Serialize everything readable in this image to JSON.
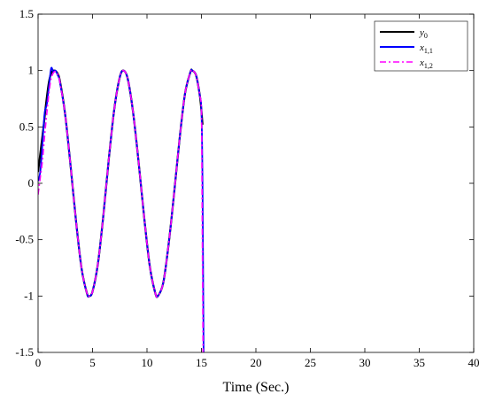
{
  "chart_data": {
    "type": "line",
    "title": "",
    "xlabel": "Time (Sec.)",
    "ylabel": "",
    "xlim": [
      0,
      40
    ],
    "ylim": [
      -1.5,
      1.5
    ],
    "x_ticks": [
      0,
      5,
      10,
      15,
      20,
      25,
      30,
      35,
      40
    ],
    "x_tick_labels": [
      "0",
      "5",
      "10",
      "15",
      "20",
      "25",
      "30",
      "35",
      "40"
    ],
    "y_ticks": [
      1.5,
      1,
      0.5,
      0,
      -0.5,
      -1,
      -1.5
    ],
    "y_tick_labels": [
      "1.5",
      "1",
      "0.5",
      "0",
      "-0.5",
      "-1",
      "-1.5"
    ],
    "grid": false,
    "legend_position": "top-right",
    "series": [
      {
        "name": "y0",
        "name_main": "y",
        "name_sub": "0",
        "color": "#000000",
        "dash": "solid",
        "x": [
          0,
          0.25,
          0.5,
          0.75,
          1.0,
          1.25,
          1.5,
          1.75,
          2.0,
          2.5,
          3.0,
          3.5,
          4.0,
          4.5,
          4.7,
          5.0,
          5.5,
          6.0,
          6.5,
          7.0,
          7.5,
          7.85,
          8.25,
          8.75,
          9.25,
          9.75,
          10.25,
          10.75,
          11.0,
          11.5,
          12.0,
          12.5,
          13.0,
          13.5,
          14.0,
          14.15,
          14.5,
          14.85,
          15.0,
          15.1
        ],
        "y": [
          0.1,
          0.3,
          0.5,
          0.72,
          0.9,
          0.985,
          1.0,
          0.98,
          0.91,
          0.6,
          0.14,
          -0.35,
          -0.76,
          -0.98,
          -1.0,
          -0.96,
          -0.71,
          -0.28,
          0.22,
          0.66,
          0.94,
          1.0,
          0.92,
          0.61,
          0.17,
          -0.31,
          -0.73,
          -0.97,
          -1.0,
          -0.88,
          -0.53,
          -0.08,
          0.4,
          0.8,
          0.99,
          1.0,
          0.96,
          0.78,
          0.64,
          0.52
        ]
      },
      {
        "name": "x1,1",
        "name_main": "x",
        "name_sub": "1,1",
        "color": "#0000ff",
        "dash": "solid",
        "x": [
          0,
          0.2,
          0.4,
          0.6,
          0.8,
          1.0,
          1.2,
          1.4,
          1.6,
          1.8,
          2.0,
          2.5,
          3.0,
          3.5,
          4.0,
          4.5,
          4.7,
          5.0,
          5.5,
          6.0,
          6.5,
          7.0,
          7.5,
          7.85,
          8.25,
          8.75,
          9.25,
          9.75,
          10.25,
          10.75,
          11.0,
          11.5,
          12.0,
          12.5,
          13.0,
          13.5,
          14.0,
          14.15,
          14.5,
          14.85,
          15.0,
          15.1,
          15.2
        ],
        "y": [
          0.02,
          0.1,
          0.35,
          0.62,
          0.7,
          0.86,
          1.02,
          0.99,
          1.0,
          0.96,
          0.9,
          0.6,
          0.14,
          -0.35,
          -0.76,
          -0.98,
          -1.0,
          -0.96,
          -0.71,
          -0.28,
          0.22,
          0.66,
          0.94,
          1.0,
          0.92,
          0.61,
          0.17,
          -0.31,
          -0.73,
          -0.97,
          -1.0,
          -0.88,
          -0.53,
          -0.08,
          0.4,
          0.8,
          0.99,
          1.0,
          0.96,
          0.78,
          0.64,
          0.0,
          -1.5
        ]
      },
      {
        "name": "x1,2",
        "name_main": "x",
        "name_sub": "1,2",
        "color": "#ff00ff",
        "dash": "dashdot",
        "x": [
          0,
          0.2,
          0.4,
          0.6,
          0.8,
          1.0,
          1.2,
          1.5,
          1.8,
          2.0,
          2.5,
          3.0,
          3.5,
          4.0,
          4.5,
          4.7,
          5.0,
          5.5,
          6.0,
          6.5,
          7.0,
          7.5,
          7.85,
          8.25,
          8.75,
          9.25,
          9.75,
          10.25,
          10.75,
          11.0,
          11.5,
          12.0,
          12.5,
          13.0,
          13.5,
          14.0,
          14.15,
          14.5,
          14.85,
          15.0,
          15.05,
          15.15
        ],
        "y": [
          -0.1,
          0.05,
          0.2,
          0.42,
          0.62,
          0.8,
          0.93,
          0.99,
          0.97,
          0.9,
          0.6,
          0.14,
          -0.35,
          -0.76,
          -0.98,
          -1.0,
          -0.96,
          -0.71,
          -0.28,
          0.22,
          0.66,
          0.94,
          1.0,
          0.92,
          0.61,
          0.17,
          -0.31,
          -0.73,
          -0.97,
          -1.0,
          -0.88,
          -0.53,
          -0.08,
          0.4,
          0.8,
          0.99,
          1.0,
          0.96,
          0.78,
          0.64,
          0.0,
          -1.5
        ]
      }
    ]
  }
}
